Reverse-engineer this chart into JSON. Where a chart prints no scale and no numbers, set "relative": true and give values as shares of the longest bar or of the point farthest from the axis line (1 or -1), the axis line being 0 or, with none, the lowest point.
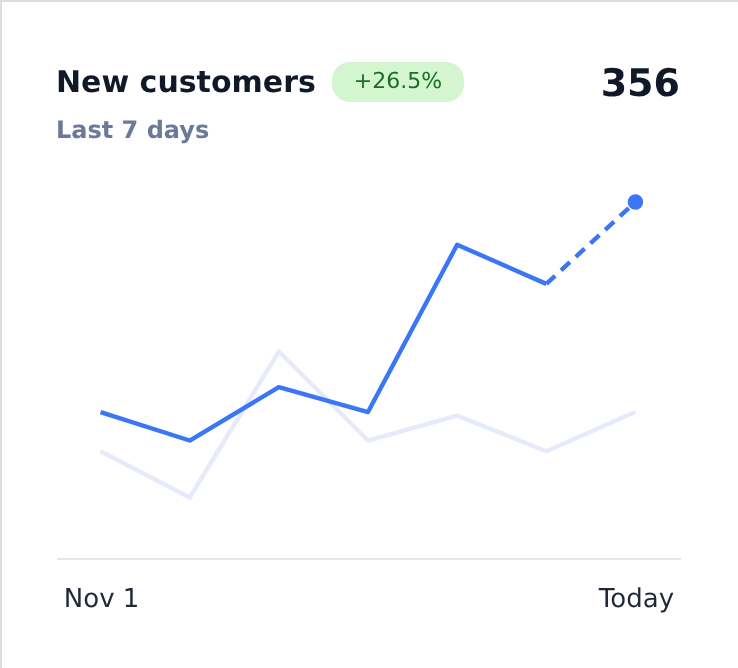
{
  "chart_data": {
    "type": "line",
    "title": "New customers",
    "subtitle": "Last 7 days",
    "annotations": [
      "+26.5%",
      "356"
    ],
    "categories": [
      "Nov 1",
      null,
      null,
      null,
      null,
      null,
      "Today"
    ],
    "relative": true,
    "series": [
      {
        "color": "#e6eafb",
        "values": [
          0.3,
          0.17,
          0.58,
          0.33,
          0.4,
          0.3,
          0.41
        ]
      },
      {
        "color": "#3b76f6",
        "values": [
          0.41,
          0.33,
          0.48,
          0.41,
          0.88,
          0.77,
          null
        ]
      },
      {
        "color": "#3b76f6",
        "line_style": "dashed",
        "values": [
          null,
          null,
          null,
          null,
          null,
          0.77,
          1.0
        ]
      },
      {
        "type": "scatter",
        "marker": "circle",
        "color": "#3b76f6",
        "values": [
          null,
          null,
          null,
          null,
          null,
          null,
          1.0
        ]
      }
    ]
  }
}
